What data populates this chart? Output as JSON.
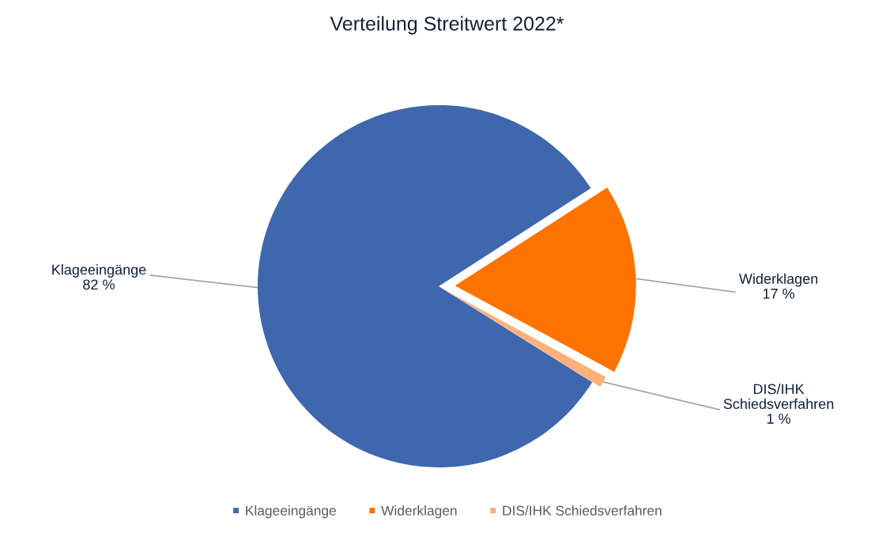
{
  "chart_data": {
    "type": "pie",
    "title": "Verteilung Streitwert 2022*",
    "categories": [
      "Klageeingänge",
      "Widerklagen",
      "DIS/IHK Schiedsverfahren"
    ],
    "values": [
      82,
      17,
      1
    ],
    "colors": [
      "#3f67ad",
      "#ff7300",
      "#ffb07a"
    ],
    "value_labels": [
      "82 %",
      "17 %",
      "1 %"
    ],
    "legend": "bottom"
  }
}
